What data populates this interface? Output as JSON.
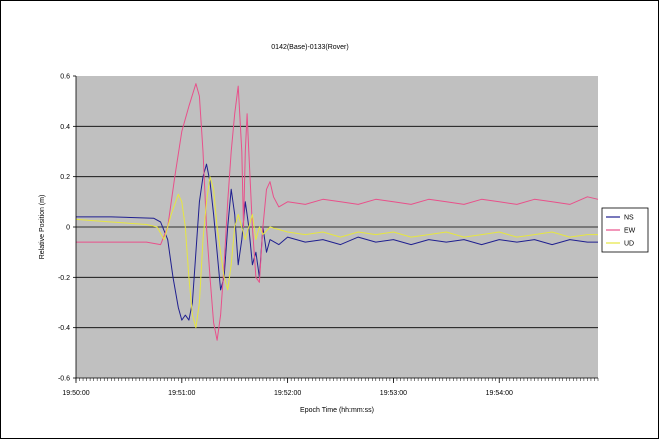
{
  "chart_data": {
    "type": "line",
    "title": "0142(Base)-0133(Rover)",
    "xlabel": "Epoch Time (hh:mm:ss)",
    "ylabel": "Relative Position (m)",
    "ylim": [
      -0.6,
      0.6
    ],
    "yticks": [
      "0.6",
      "0.4",
      "0.2",
      "0",
      "-0.2",
      "-0.4",
      "-0.6"
    ],
    "xlim_seconds_from_195000": [
      0,
      296
    ],
    "xticks": [
      {
        "label": "19:50:00",
        "t": 0
      },
      {
        "label": "19:51:00",
        "t": 60
      },
      {
        "label": "19:52:00",
        "t": 120
      },
      {
        "label": "19:53:00",
        "t": 180
      },
      {
        "label": "19:54:00",
        "t": 240
      }
    ],
    "grid": "horizontal",
    "background": "#c0c0c0",
    "legend_position": "right",
    "series": [
      {
        "name": "NS",
        "color": "#1f1f8f",
        "points": [
          [
            0,
            0.04
          ],
          [
            20,
            0.04
          ],
          [
            44,
            0.035
          ],
          [
            48,
            0.02
          ],
          [
            52,
            -0.05
          ],
          [
            55,
            -0.2
          ],
          [
            58,
            -0.32
          ],
          [
            60,
            -0.37
          ],
          [
            62,
            -0.35
          ],
          [
            64,
            -0.37
          ],
          [
            66,
            -0.3
          ],
          [
            68,
            -0.1
          ],
          [
            70,
            0.1
          ],
          [
            72,
            0.2
          ],
          [
            74,
            0.25
          ],
          [
            76,
            0.18
          ],
          [
            78,
            0.05
          ],
          [
            80,
            -0.1
          ],
          [
            82,
            -0.25
          ],
          [
            84,
            -0.2
          ],
          [
            86,
            0.0
          ],
          [
            88,
            0.15
          ],
          [
            90,
            0.05
          ],
          [
            92,
            -0.15
          ],
          [
            94,
            -0.05
          ],
          [
            96,
            0.1
          ],
          [
            98,
            0.0
          ],
          [
            100,
            -0.15
          ],
          [
            102,
            -0.1
          ],
          [
            104,
            -0.2
          ],
          [
            106,
            0.0
          ],
          [
            108,
            -0.1
          ],
          [
            110,
            -0.05
          ],
          [
            115,
            -0.07
          ],
          [
            120,
            -0.04
          ],
          [
            130,
            -0.06
          ],
          [
            140,
            -0.05
          ],
          [
            150,
            -0.07
          ],
          [
            160,
            -0.04
          ],
          [
            170,
            -0.06
          ],
          [
            180,
            -0.05
          ],
          [
            190,
            -0.07
          ],
          [
            200,
            -0.05
          ],
          [
            210,
            -0.06
          ],
          [
            220,
            -0.05
          ],
          [
            230,
            -0.07
          ],
          [
            240,
            -0.05
          ],
          [
            250,
            -0.06
          ],
          [
            260,
            -0.05
          ],
          [
            270,
            -0.07
          ],
          [
            280,
            -0.05
          ],
          [
            290,
            -0.06
          ],
          [
            296,
            -0.06
          ]
        ]
      },
      {
        "name": "EW",
        "color": "#e8508a",
        "points": [
          [
            0,
            -0.06
          ],
          [
            20,
            -0.06
          ],
          [
            40,
            -0.06
          ],
          [
            48,
            -0.07
          ],
          [
            52,
            0.0
          ],
          [
            56,
            0.2
          ],
          [
            60,
            0.38
          ],
          [
            64,
            0.48
          ],
          [
            68,
            0.57
          ],
          [
            70,
            0.52
          ],
          [
            72,
            0.3
          ],
          [
            74,
            0.0
          ],
          [
            76,
            -0.2
          ],
          [
            78,
            -0.38
          ],
          [
            80,
            -0.45
          ],
          [
            82,
            -0.35
          ],
          [
            84,
            -0.15
          ],
          [
            86,
            0.1
          ],
          [
            88,
            0.3
          ],
          [
            90,
            0.45
          ],
          [
            92,
            0.56
          ],
          [
            94,
            0.3
          ],
          [
            95,
            0.0
          ],
          [
            96,
            0.3
          ],
          [
            97,
            0.45
          ],
          [
            98,
            0.3
          ],
          [
            100,
            0.0
          ],
          [
            102,
            -0.2
          ],
          [
            104,
            -0.22
          ],
          [
            106,
            0.0
          ],
          [
            108,
            0.15
          ],
          [
            110,
            0.18
          ],
          [
            112,
            0.12
          ],
          [
            115,
            0.08
          ],
          [
            120,
            0.1
          ],
          [
            130,
            0.09
          ],
          [
            140,
            0.11
          ],
          [
            150,
            0.1
          ],
          [
            160,
            0.09
          ],
          [
            170,
            0.11
          ],
          [
            180,
            0.1
          ],
          [
            190,
            0.09
          ],
          [
            200,
            0.11
          ],
          [
            210,
            0.1
          ],
          [
            220,
            0.09
          ],
          [
            230,
            0.11
          ],
          [
            240,
            0.1
          ],
          [
            250,
            0.09
          ],
          [
            260,
            0.11
          ],
          [
            270,
            0.1
          ],
          [
            280,
            0.09
          ],
          [
            290,
            0.12
          ],
          [
            296,
            0.11
          ]
        ]
      },
      {
        "name": "UD",
        "color": "#e6e640",
        "points": [
          [
            0,
            0.03
          ],
          [
            20,
            0.02
          ],
          [
            40,
            0.01
          ],
          [
            46,
            0.0
          ],
          [
            50,
            -0.05
          ],
          [
            54,
            0.05
          ],
          [
            58,
            0.13
          ],
          [
            60,
            0.1
          ],
          [
            62,
            0.0
          ],
          [
            64,
            -0.2
          ],
          [
            66,
            -0.35
          ],
          [
            68,
            -0.4
          ],
          [
            70,
            -0.3
          ],
          [
            72,
            -0.05
          ],
          [
            74,
            0.1
          ],
          [
            76,
            0.2
          ],
          [
            78,
            0.15
          ],
          [
            80,
            0.0
          ],
          [
            82,
            -0.1
          ],
          [
            84,
            -0.2
          ],
          [
            86,
            -0.25
          ],
          [
            88,
            -0.15
          ],
          [
            90,
            0.0
          ],
          [
            92,
            0.05
          ],
          [
            94,
            0.0
          ],
          [
            96,
            -0.05
          ],
          [
            98,
            0.0
          ],
          [
            100,
            0.05
          ],
          [
            102,
            -0.05
          ],
          [
            104,
            0.0
          ],
          [
            106,
            -0.03
          ],
          [
            110,
            0.0
          ],
          [
            120,
            -0.02
          ],
          [
            130,
            -0.03
          ],
          [
            140,
            -0.02
          ],
          [
            150,
            -0.04
          ],
          [
            160,
            -0.02
          ],
          [
            170,
            -0.03
          ],
          [
            180,
            -0.02
          ],
          [
            190,
            -0.04
          ],
          [
            200,
            -0.03
          ],
          [
            210,
            -0.02
          ],
          [
            220,
            -0.04
          ],
          [
            230,
            -0.03
          ],
          [
            240,
            -0.02
          ],
          [
            250,
            -0.04
          ],
          [
            260,
            -0.03
          ],
          [
            270,
            -0.02
          ],
          [
            280,
            -0.04
          ],
          [
            290,
            -0.03
          ],
          [
            296,
            -0.03
          ]
        ]
      }
    ]
  }
}
